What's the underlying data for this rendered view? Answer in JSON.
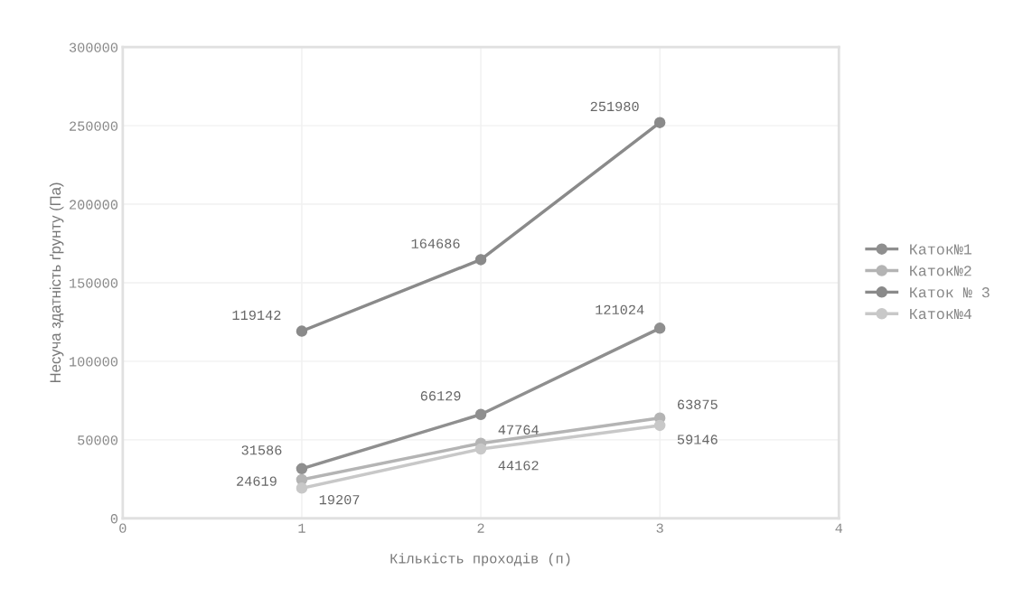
{
  "chart_data": {
    "type": "line",
    "xlabel": "Кількість проходів (п)",
    "ylabel": "Несуча здатність ґрунту (Па)",
    "x": [
      1,
      2,
      3
    ],
    "series": [
      {
        "name": "Каток№1",
        "color": "#8f8f8f",
        "values": [
          31586,
          66129,
          121024
        ]
      },
      {
        "name": "Каток№2",
        "color": "#b4b4b4",
        "values": [
          24619,
          47764,
          63875
        ]
      },
      {
        "name": "Каток № 3",
        "color": "#8a8a8a",
        "values": [
          119142,
          164686,
          251980
        ]
      },
      {
        "name": "Каток№4",
        "color": "#c8c8c8",
        "values": [
          19207,
          44162,
          59146
        ]
      }
    ],
    "xlim": [
      0,
      4
    ],
    "xticks": [
      0,
      1,
      2,
      3,
      4
    ],
    "ylim": [
      0,
      300000
    ],
    "yticks": [
      0,
      50000,
      100000,
      150000,
      200000,
      250000,
      300000
    ],
    "grid": true,
    "legend": "right",
    "marker": "circle",
    "line_style": "solid",
    "data_labels": true
  }
}
